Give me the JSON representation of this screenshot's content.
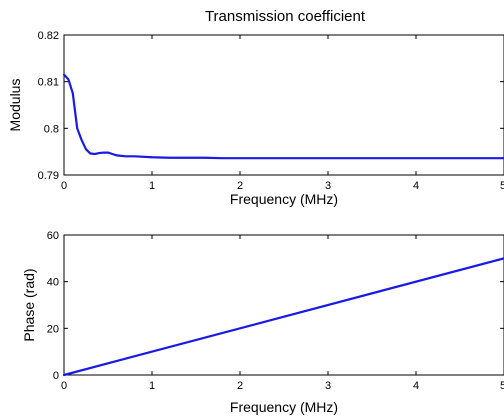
{
  "figure": {
    "background": "#ffffff",
    "line_color": "#1a1ae6"
  },
  "chart_data": [
    {
      "type": "line",
      "title": "Transmission coefficient",
      "xlabel": "Frequency (MHz)",
      "ylabel": "Modulus",
      "xlim": [
        0,
        5
      ],
      "ylim": [
        0.79,
        0.82
      ],
      "xticks": [
        0,
        1,
        2,
        3,
        4,
        5
      ],
      "xtick_labels": [
        "0",
        "1",
        "2",
        "3",
        "4",
        "5"
      ],
      "yticks": [
        0.79,
        0.8,
        0.81,
        0.82
      ],
      "ytick_labels": [
        "0.79",
        "0.8",
        "0.81",
        "0.82"
      ],
      "grid": false,
      "series": [
        {
          "color": "#1a1ae6",
          "x": [
            0,
            0.05,
            0.1,
            0.15,
            0.2,
            0.25,
            0.3,
            0.35,
            0.4,
            0.45,
            0.5,
            0.55,
            0.6,
            0.7,
            0.8,
            1.0,
            1.2,
            1.4,
            1.6,
            1.8,
            2.0,
            2.5,
            3.0,
            3.5,
            4.0,
            4.5,
            5.0
          ],
          "y": [
            0.8115,
            0.8105,
            0.8075,
            0.8,
            0.7975,
            0.7955,
            0.7946,
            0.7945,
            0.7947,
            0.7948,
            0.7948,
            0.7945,
            0.7942,
            0.794,
            0.794,
            0.7938,
            0.7937,
            0.7937,
            0.7937,
            0.7936,
            0.7936,
            0.7936,
            0.7936,
            0.7936,
            0.7936,
            0.7936,
            0.7936
          ]
        }
      ]
    },
    {
      "type": "line",
      "title": "",
      "xlabel": "Frequency (MHz)",
      "ylabel": "Phase (rad)",
      "xlim": [
        0,
        5
      ],
      "ylim": [
        0,
        60
      ],
      "xticks": [
        0,
        1,
        2,
        3,
        4,
        5
      ],
      "xtick_labels": [
        "0",
        "1",
        "2",
        "3",
        "4",
        "5"
      ],
      "yticks": [
        0,
        20,
        40,
        60
      ],
      "ytick_labels": [
        "0",
        "20",
        "40",
        "60"
      ],
      "grid": false,
      "series": [
        {
          "color": "#1a1ae6",
          "x": [
            0,
            5
          ],
          "y": [
            0,
            50
          ]
        }
      ]
    }
  ]
}
